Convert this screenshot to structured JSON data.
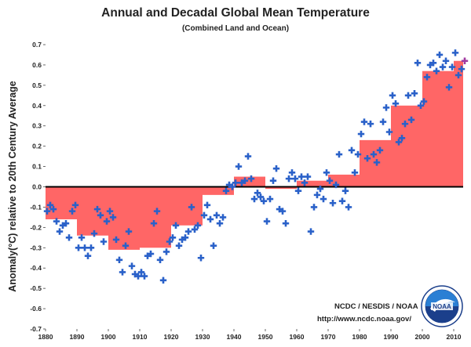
{
  "chart_data": {
    "type": "bar",
    "title": "Annual and Decadal Global Mean Temperature",
    "subtitle": "(Combined Land and Ocean)",
    "ylabel": "Anomaly(°C) relative to 20th Century Average",
    "xlim": [
      1880,
      2013
    ],
    "ylim": [
      -0.7,
      0.7
    ],
    "x_ticks": [
      1880,
      1890,
      1900,
      1910,
      1920,
      1930,
      1940,
      1950,
      1960,
      1970,
      1980,
      1990,
      2000,
      2010
    ],
    "y_ticks": [
      "0.7",
      "0.6",
      "0.5",
      "0.4",
      "0.3",
      "0.2",
      "0.1",
      "0.0",
      "-0.1",
      "-0.2",
      "-0.3",
      "-0.4",
      "-0.5",
      "-0.6",
      "-0.7"
    ],
    "decadal": [
      {
        "start": 1880,
        "end": 1890,
        "value": -0.16
      },
      {
        "start": 1890,
        "end": 1900,
        "value": -0.24
      },
      {
        "start": 1900,
        "end": 1910,
        "value": -0.31
      },
      {
        "start": 1910,
        "end": 1920,
        "value": -0.3
      },
      {
        "start": 1920,
        "end": 1930,
        "value": -0.19
      },
      {
        "start": 1930,
        "end": 1940,
        "value": -0.04
      },
      {
        "start": 1940,
        "end": 1950,
        "value": 0.05
      },
      {
        "start": 1950,
        "end": 1960,
        "value": -0.01
      },
      {
        "start": 1960,
        "end": 1970,
        "value": 0.03
      },
      {
        "start": 1970,
        "end": 1980,
        "value": 0.06
      },
      {
        "start": 1980,
        "end": 1990,
        "value": 0.23
      },
      {
        "start": 1990,
        "end": 2000,
        "value": 0.4
      },
      {
        "start": 2000,
        "end": 2010,
        "value": 0.57
      },
      {
        "start": 2010,
        "end": 2013,
        "value": 0.62
      }
    ],
    "annual_years": [
      1880,
      1881,
      1882,
      1883,
      1884,
      1885,
      1886,
      1887,
      1888,
      1889,
      1890,
      1891,
      1892,
      1893,
      1894,
      1895,
      1896,
      1897,
      1898,
      1899,
      1900,
      1901,
      1902,
      1903,
      1904,
      1905,
      1906,
      1907,
      1908,
      1909,
      1910,
      1911,
      1912,
      1913,
      1914,
      1915,
      1916,
      1917,
      1918,
      1919,
      1920,
      1921,
      1922,
      1923,
      1924,
      1925,
      1926,
      1927,
      1928,
      1929,
      1930,
      1931,
      1932,
      1933,
      1934,
      1935,
      1936,
      1937,
      1938,
      1939,
      1940,
      1941,
      1942,
      1943,
      1944,
      1945,
      1946,
      1947,
      1948,
      1949,
      1950,
      1951,
      1952,
      1953,
      1954,
      1955,
      1956,
      1957,
      1958,
      1959,
      1960,
      1961,
      1962,
      1963,
      1964,
      1965,
      1966,
      1967,
      1968,
      1969,
      1970,
      1971,
      1972,
      1973,
      1974,
      1975,
      1976,
      1977,
      1978,
      1979,
      1980,
      1981,
      1982,
      1983,
      1984,
      1985,
      1986,
      1987,
      1988,
      1989,
      1990,
      1991,
      1992,
      1993,
      1994,
      1995,
      1996,
      1997,
      1998,
      1999,
      2000,
      2001,
      2002,
      2003,
      2004,
      2005,
      2006,
      2007,
      2008,
      2009,
      2010,
      2011,
      2012,
      2013
    ],
    "annual_values": [
      -0.12,
      -0.09,
      -0.11,
      -0.17,
      -0.22,
      -0.19,
      -0.18,
      -0.25,
      -0.12,
      -0.09,
      -0.3,
      -0.25,
      -0.3,
      -0.34,
      -0.3,
      -0.23,
      -0.11,
      -0.14,
      -0.27,
      -0.17,
      -0.12,
      -0.15,
      -0.26,
      -0.36,
      -0.42,
      -0.29,
      -0.22,
      -0.39,
      -0.43,
      -0.44,
      -0.42,
      -0.44,
      -0.34,
      -0.33,
      -0.18,
      -0.12,
      -0.36,
      -0.46,
      -0.32,
      -0.27,
      -0.25,
      -0.19,
      -0.29,
      -0.26,
      -0.25,
      -0.22,
      -0.1,
      -0.21,
      -0.19,
      -0.35,
      -0.14,
      -0.09,
      -0.16,
      -0.29,
      -0.14,
      -0.18,
      -0.15,
      -0.02,
      0.01,
      0.0,
      0.02,
      0.1,
      0.02,
      0.03,
      0.15,
      0.04,
      -0.06,
      -0.03,
      -0.05,
      -0.07,
      -0.17,
      -0.06,
      0.03,
      0.09,
      -0.11,
      -0.12,
      -0.18,
      0.04,
      0.07,
      0.04,
      -0.02,
      0.05,
      0.02,
      0.05,
      -0.22,
      -0.1,
      -0.04,
      -0.01,
      -0.06,
      0.07,
      0.03,
      -0.08,
      0.01,
      0.16,
      -0.07,
      -0.02,
      -0.1,
      0.18,
      0.07,
      0.16,
      0.26,
      0.32,
      0.14,
      0.31,
      0.16,
      0.12,
      0.18,
      0.32,
      0.39,
      0.27,
      0.45,
      0.41,
      0.22,
      0.24,
      0.31,
      0.45,
      0.33,
      0.46,
      0.61,
      0.4,
      0.42,
      0.54,
      0.6,
      0.61,
      0.57,
      0.65,
      0.59,
      0.62,
      0.49,
      0.59,
      0.66,
      0.55,
      0.58,
      0.62
    ],
    "colors": {
      "decadal_fill": "#ff6666",
      "annual_marker": "#2a61c9",
      "latest_marker": "#a03aa0",
      "zero_line": "#000000"
    },
    "credits": {
      "line1": "NCDC / NESDIS / NOAA",
      "line2": "http://www.ncdc.noaa.gov/"
    },
    "logo": {
      "text": "NOAA",
      "icon": "noaa-logo-icon"
    }
  }
}
